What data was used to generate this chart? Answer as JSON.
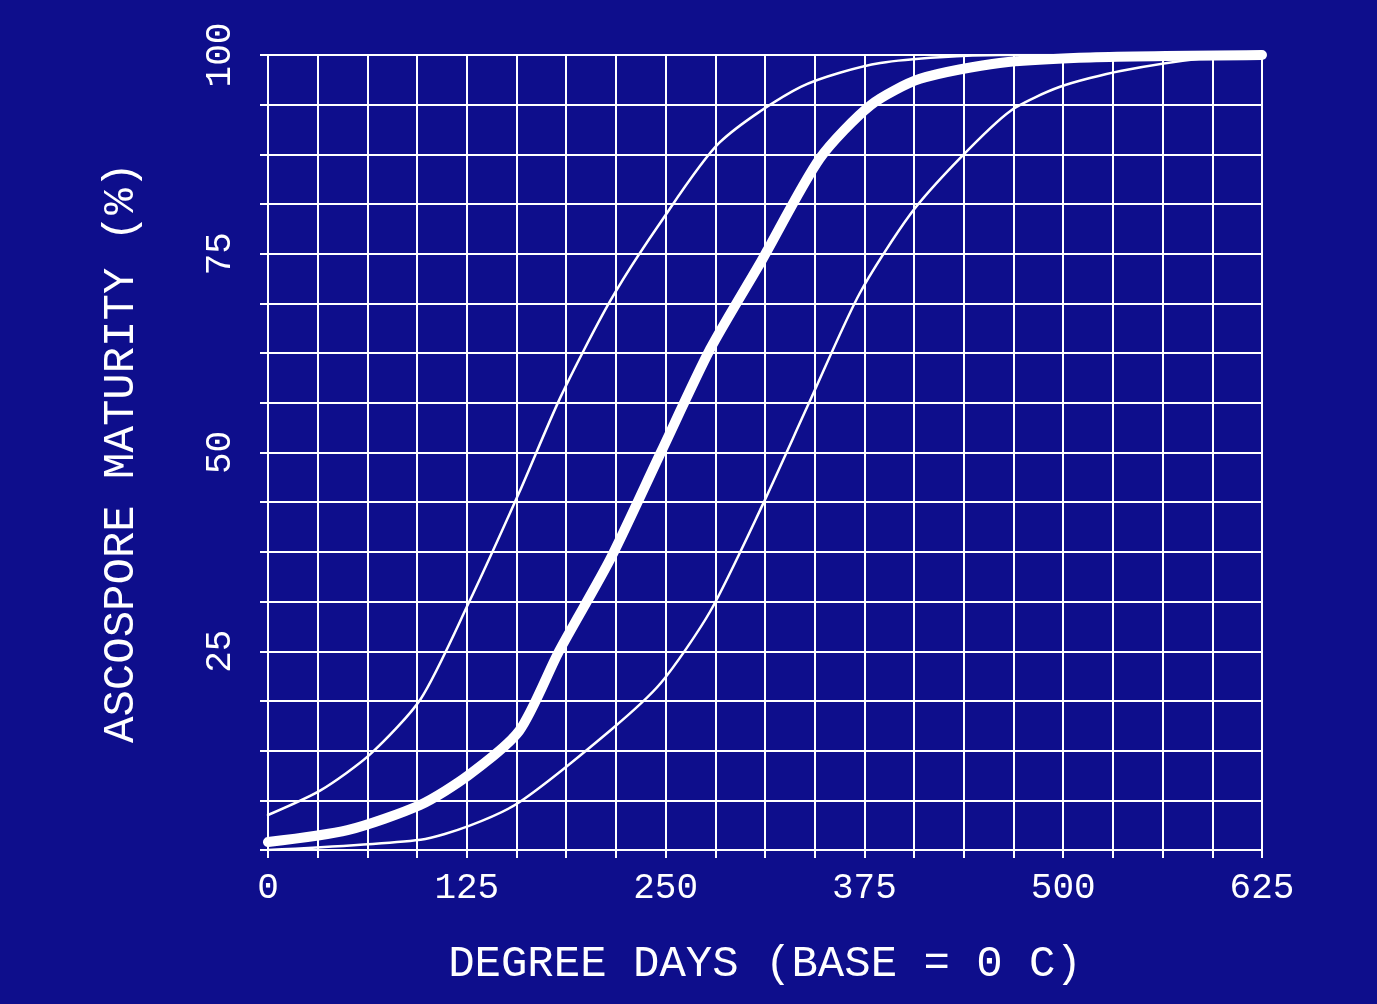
{
  "chart_data": {
    "type": "line",
    "xlabel": "DEGREE DAYS (BASE = 0 C)",
    "ylabel": "ASCOSPORE MATURITY (%)",
    "xlim": [
      0,
      625
    ],
    "ylim": [
      0,
      100
    ],
    "xticks": [
      0,
      {
        "value": 31.25,
        "label": null
      },
      {
        "value": 62.5,
        "label": null
      },
      {
        "value": 93.75,
        "label": null
      },
      125,
      {
        "value": 156.25,
        "label": null
      },
      {
        "value": 187.5,
        "label": null
      },
      {
        "value": 218.75,
        "label": null
      },
      250,
      {
        "value": 281.25,
        "label": null
      },
      {
        "value": 312.5,
        "label": null
      },
      {
        "value": 343.75,
        "label": null
      },
      375,
      {
        "value": 406.25,
        "label": null
      },
      {
        "value": 437.5,
        "label": null
      },
      {
        "value": 468.75,
        "label": null
      },
      500,
      {
        "value": 531.25,
        "label": null
      },
      {
        "value": 562.5,
        "label": null
      },
      {
        "value": 593.75,
        "label": null
      },
      625
    ],
    "yticks": [
      {
        "value": 0,
        "label": null
      },
      {
        "value": 6.25,
        "label": null
      },
      {
        "value": 12.5,
        "label": null
      },
      {
        "value": 18.75,
        "label": null
      },
      25,
      {
        "value": 31.25,
        "label": null
      },
      {
        "value": 37.5,
        "label": null
      },
      {
        "value": 43.75,
        "label": null
      },
      50,
      {
        "value": 56.25,
        "label": null
      },
      {
        "value": 62.5,
        "label": null
      },
      {
        "value": 68.75,
        "label": null
      },
      75,
      {
        "value": 81.25,
        "label": null
      },
      {
        "value": 87.5,
        "label": null
      },
      {
        "value": 93.75,
        "label": null
      },
      100
    ],
    "grid": true,
    "marker": "none",
    "line_style": "solid",
    "series": [
      {
        "color": "#ffffff",
        "x": [
          0,
          33,
          64,
          96,
          126,
          158,
          184,
          215,
          247,
          284,
          335,
          385,
          460,
          625
        ],
        "values": [
          4.4,
          7.5,
          12,
          19,
          31,
          45,
          57,
          69,
          79,
          89,
          96,
          99,
          100,
          100
        ]
      },
      {
        "color": "#ffffff",
        "x": [
          0,
          50,
          96,
          126,
          158,
          183,
          215,
          247,
          278,
          310,
          347,
          379,
          410,
          460,
          517,
          625
        ],
        "values": [
          1,
          2.5,
          5.7,
          9.4,
          15,
          25,
          36.5,
          50,
          63,
          74,
          87,
          93.7,
          97,
          99,
          99.7,
          100
        ]
      },
      {
        "color": "#ffffff",
        "x": [
          0,
          96,
          126,
          158,
          215,
          247,
          278,
          310,
          341,
          372,
          404,
          435,
          467,
          498,
          536,
          592,
          625
        ],
        "values": [
          0,
          1.3,
          3,
          6,
          15,
          21,
          30,
          43,
          56.6,
          70,
          80,
          87,
          93,
          96,
          98,
          99.7,
          100
        ]
      }
    ]
  }
}
